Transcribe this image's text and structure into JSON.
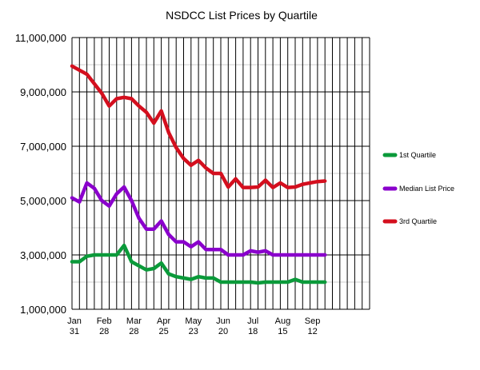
{
  "chart_data": {
    "type": "line",
    "title": "NSDCC List Prices by Quartile",
    "xlabel": "",
    "ylabel": "",
    "ylim": [
      1000000,
      11000000
    ],
    "y_ticks": [
      "1,000,000",
      "3,000,000",
      "5,000,000",
      "7,000,000",
      "9,000,000",
      "11,000,000"
    ],
    "y_tick_values": [
      1000000,
      3000000,
      5000000,
      7000000,
      9000000,
      11000000
    ],
    "x_tick_labels": [
      {
        "month": "Jan",
        "day": "31",
        "index": 0
      },
      {
        "month": "Feb",
        "day": "28",
        "index": 4
      },
      {
        "month": "Mar",
        "day": "28",
        "index": 8
      },
      {
        "month": "Apr",
        "day": "25",
        "index": 12
      },
      {
        "month": "May",
        "day": "23",
        "index": 16
      },
      {
        "month": "Jun",
        "day": "20",
        "index": 20
      },
      {
        "month": "Jul",
        "day": "18",
        "index": 24
      },
      {
        "month": "Aug",
        "day": "15",
        "index": 28
      },
      {
        "month": "Sep",
        "day": "12",
        "index": 32
      }
    ],
    "x_slots": 40,
    "grid": true,
    "legend_position": "right",
    "series": [
      {
        "name": "1st Quartile",
        "color": "#0b9a3a",
        "values": [
          2750000,
          2750000,
          2950000,
          3000000,
          3000000,
          3000000,
          3000000,
          3350000,
          2750000,
          2600000,
          2450000,
          2500000,
          2700000,
          2300000,
          2200000,
          2150000,
          2100000,
          2200000,
          2150000,
          2150000,
          2000000,
          2000000,
          2000000,
          2000000,
          2000000,
          1970000,
          2000000,
          2000000,
          2000000,
          2000000,
          2100000,
          2000000,
          2000000,
          2000000,
          2000000
        ]
      },
      {
        "name": "Median List Price",
        "color": "#8a00cc",
        "values": [
          5100000,
          4950000,
          5650000,
          5450000,
          5000000,
          4800000,
          5250000,
          5500000,
          5000000,
          4350000,
          3950000,
          3950000,
          4250000,
          3750000,
          3480000,
          3480000,
          3300000,
          3480000,
          3200000,
          3200000,
          3200000,
          3000000,
          3000000,
          3000000,
          3150000,
          3100000,
          3150000,
          3000000,
          3000000,
          3000000,
          3000000,
          3000000,
          3000000,
          3000000,
          3000000
        ]
      },
      {
        "name": "3rd Quartile",
        "color": "#d40f1e",
        "values": [
          9950000,
          9800000,
          9650000,
          9300000,
          8950000,
          8480000,
          8750000,
          8800000,
          8750000,
          8480000,
          8250000,
          7850000,
          8300000,
          7500000,
          6950000,
          6550000,
          6300000,
          6480000,
          6200000,
          6000000,
          6000000,
          5500000,
          5800000,
          5480000,
          5480000,
          5500000,
          5750000,
          5480000,
          5650000,
          5480000,
          5500000,
          5600000,
          5650000,
          5700000,
          5720000
        ]
      }
    ]
  }
}
